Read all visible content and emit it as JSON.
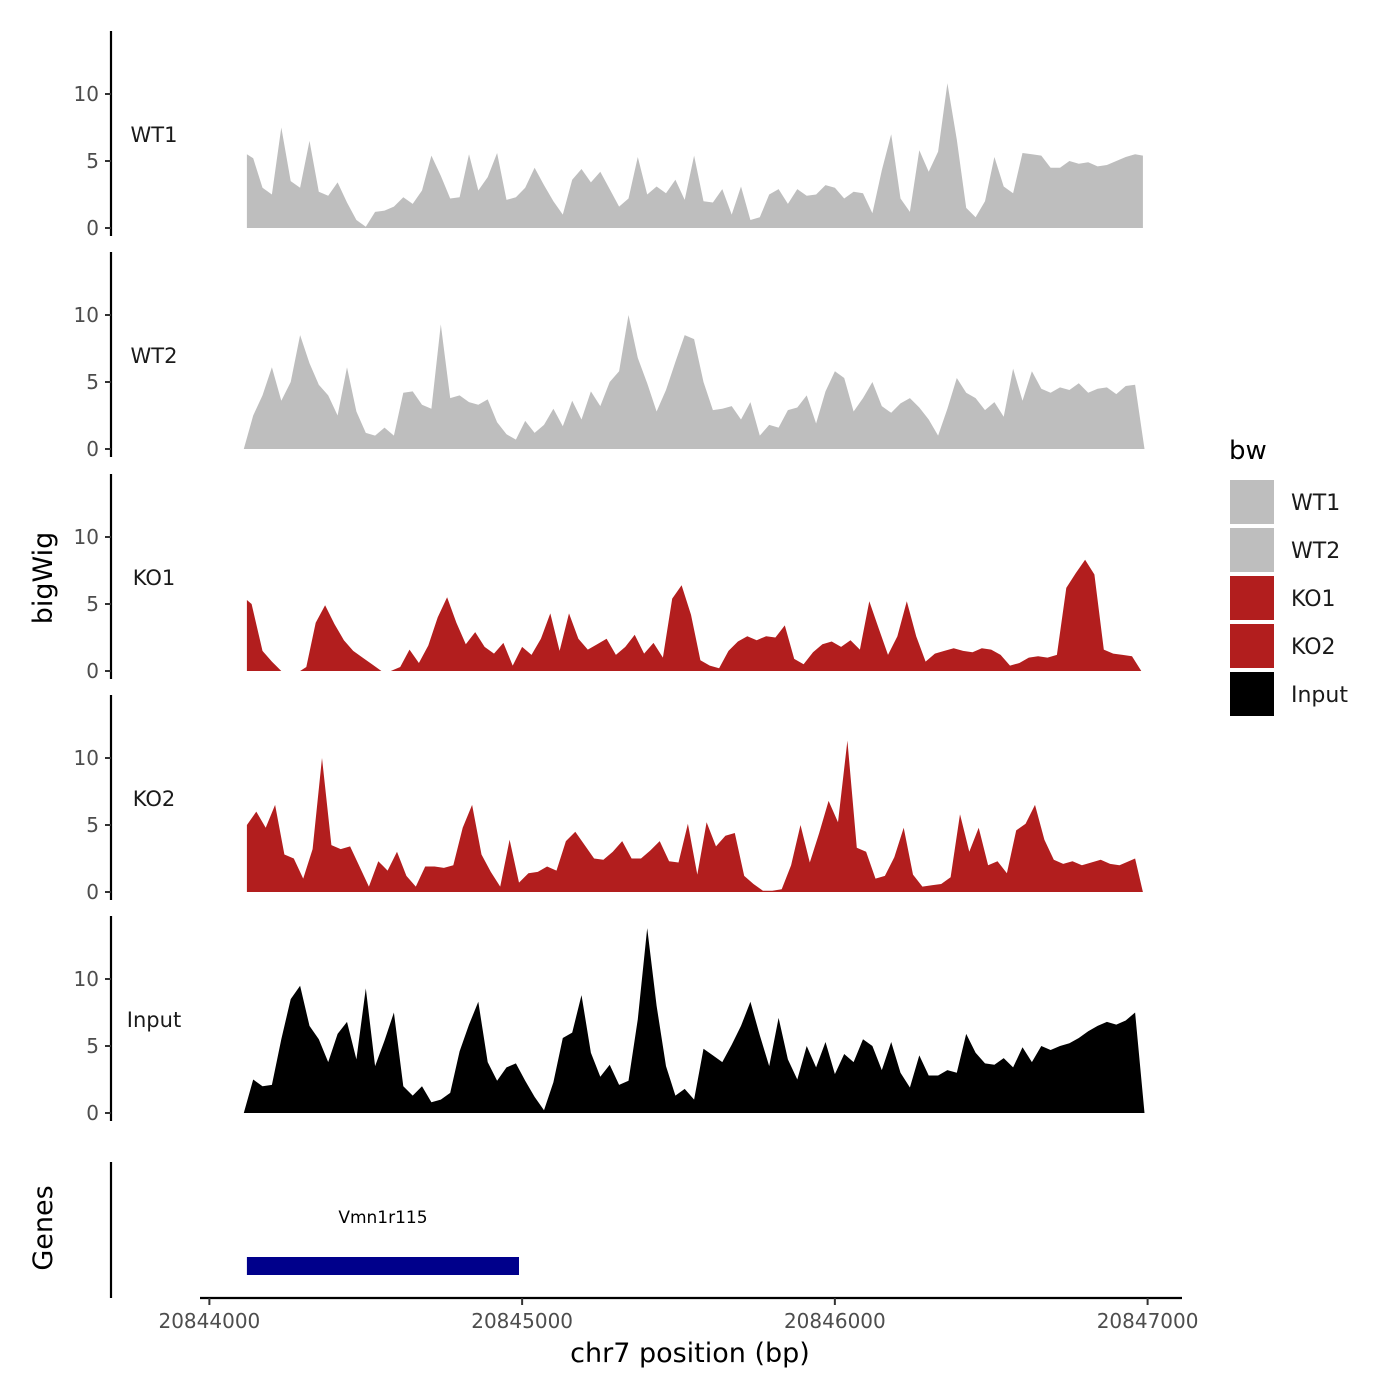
{
  "chart_data": {
    "type": "area",
    "ylabel": "bigWig",
    "xlabel": "chr7 position (bp)",
    "xlim": [
      20843970,
      20847110
    ],
    "ylim": [
      0,
      14.5
    ],
    "x_ticks": [
      20844000,
      20845000,
      20846000,
      20847000
    ],
    "x_tick_labels": [
      "20844000",
      "20845000",
      "20846000",
      "20847000"
    ],
    "y_ticks": [
      0,
      5,
      10
    ],
    "y_tick_labels": [
      "0",
      "5",
      "10"
    ],
    "legend": {
      "title": "bw",
      "position": "right",
      "entries": [
        {
          "name": "WT1",
          "color": "#bebebe"
        },
        {
          "name": "WT2",
          "color": "#bebebe"
        },
        {
          "name": "KO1",
          "color": "#b21e1e"
        },
        {
          "name": "KO2",
          "color": "#b21e1e"
        },
        {
          "name": "Input",
          "color": "#000000"
        }
      ]
    },
    "series": [
      {
        "name": "WT1",
        "color": "#bebebe",
        "x": [
          20844120,
          20844140,
          20844170,
          20844200,
          20844230,
          20844260,
          20844290,
          20844320,
          20844350,
          20844380,
          20844410,
          20844440,
          20844470,
          20844500,
          20844530,
          20844560,
          20844590,
          20844620,
          20844650,
          20844680,
          20844710,
          20844740,
          20844770,
          20844800,
          20844830,
          20844860,
          20844890,
          20844920,
          20844950,
          20844980,
          20845010,
          20845040,
          20845070,
          20845100,
          20845130,
          20845160,
          20845190,
          20845220,
          20845250,
          20845280,
          20845310,
          20845340,
          20845370,
          20845400,
          20845430,
          20845460,
          20845490,
          20845520,
          20845550,
          20845580,
          20845610,
          20845640,
          20845670,
          20845700,
          20845730,
          20845760,
          20845790,
          20845820,
          20845850,
          20845880,
          20845910,
          20845940,
          20845970,
          20846000,
          20846030,
          20846060,
          20846090,
          20846120,
          20846150,
          20846180,
          20846210,
          20846240,
          20846270,
          20846300,
          20846330,
          20846360,
          20846390,
          20846420,
          20846450,
          20846480,
          20846510,
          20846540,
          20846570,
          20846600,
          20846630,
          20846660,
          20846690,
          20846720,
          20846750,
          20846780,
          20846810,
          20846840,
          20846870,
          20846900,
          20846930,
          20846960,
          20846985
        ],
        "values": [
          5.5,
          5.2,
          3.0,
          2.5,
          7.5,
          3.5,
          3.0,
          6.5,
          2.7,
          2.4,
          3.4,
          1.9,
          0.6,
          0.1,
          1.2,
          1.3,
          1.6,
          2.3,
          1.8,
          2.8,
          5.4,
          3.9,
          2.2,
          2.3,
          5.5,
          2.8,
          3.8,
          5.6,
          2.1,
          2.3,
          3.0,
          4.5,
          3.2,
          2.0,
          1.0,
          3.6,
          4.4,
          3.4,
          4.2,
          2.9,
          1.6,
          2.2,
          5.3,
          2.5,
          3.1,
          2.6,
          3.6,
          2.1,
          5.4,
          2.0,
          1.9,
          2.9,
          1.0,
          3.1,
          0.6,
          0.8,
          2.5,
          2.9,
          1.8,
          2.9,
          2.4,
          2.5,
          3.2,
          3.0,
          2.2,
          2.7,
          2.6,
          1.1,
          4.3,
          7.0,
          2.2,
          1.2,
          5.8,
          4.2,
          5.7,
          10.8,
          6.6,
          1.5,
          0.8,
          2.0,
          5.3,
          3.1,
          2.6,
          5.6,
          5.5,
          5.4,
          4.5,
          4.5,
          5.0,
          4.8,
          4.9,
          4.6,
          4.7,
          5.0,
          5.3,
          5.5,
          5.4
        ]
      },
      {
        "name": "WT2",
        "color": "#bebebe",
        "x": [
          20844110,
          20844140,
          20844170,
          20844200,
          20844230,
          20844260,
          20844290,
          20844320,
          20844350,
          20844380,
          20844410,
          20844440,
          20844470,
          20844500,
          20844530,
          20844560,
          20844590,
          20844620,
          20844650,
          20844680,
          20844710,
          20844740,
          20844770,
          20844800,
          20844830,
          20844860,
          20844890,
          20844920,
          20844950,
          20844980,
          20845010,
          20845040,
          20845070,
          20845100,
          20845130,
          20845160,
          20845190,
          20845220,
          20845250,
          20845280,
          20845310,
          20845340,
          20845370,
          20845400,
          20845430,
          20845460,
          20845490,
          20845520,
          20845550,
          20845580,
          20845610,
          20845640,
          20845670,
          20845700,
          20845730,
          20845760,
          20845790,
          20845820,
          20845850,
          20845880,
          20845910,
          20845940,
          20845970,
          20846000,
          20846030,
          20846060,
          20846090,
          20846120,
          20846150,
          20846180,
          20846210,
          20846240,
          20846270,
          20846300,
          20846330,
          20846360,
          20846390,
          20846420,
          20846450,
          20846480,
          20846510,
          20846540,
          20846570,
          20846600,
          20846630,
          20846660,
          20846690,
          20846720,
          20846750,
          20846780,
          20846810,
          20846840,
          20846870,
          20846900,
          20846930,
          20846960,
          20846990
        ],
        "values": [
          0.0,
          2.5,
          4.0,
          6.1,
          3.6,
          5.0,
          8.5,
          6.4,
          4.8,
          4.0,
          2.5,
          6.1,
          2.8,
          1.2,
          1.0,
          1.6,
          1.0,
          4.2,
          4.3,
          3.3,
          3.0,
          9.3,
          3.8,
          4.0,
          3.5,
          3.3,
          3.7,
          2.0,
          1.1,
          0.7,
          2.1,
          1.2,
          1.8,
          3.0,
          1.7,
          3.6,
          2.2,
          4.3,
          3.2,
          5.0,
          5.8,
          10.0,
          6.8,
          4.9,
          2.8,
          4.4,
          6.5,
          8.5,
          8.2,
          5.0,
          2.9,
          3.0,
          3.2,
          2.2,
          3.5,
          1.0,
          1.8,
          1.6,
          2.9,
          3.1,
          4.0,
          1.9,
          4.3,
          5.8,
          5.3,
          2.8,
          3.8,
          5.0,
          3.2,
          2.7,
          3.4,
          3.8,
          3.1,
          2.2,
          1.0,
          3.0,
          5.3,
          4.2,
          3.8,
          2.9,
          3.5,
          2.4,
          6.0,
          3.6,
          5.8,
          4.5,
          4.2,
          4.6,
          4.4,
          4.9,
          4.2,
          4.5,
          4.6,
          4.1,
          4.7,
          4.8,
          0.0
        ]
      },
      {
        "name": "KO1",
        "color": "#b21e1e",
        "x": [
          20844120,
          20844135,
          20844170,
          20844200,
          20844230,
          20844260,
          20844290,
          20844310,
          20844340,
          20844370,
          20844400,
          20844430,
          20844460,
          20844490,
          20844520,
          20844550,
          20844580,
          20844610,
          20844640,
          20844670,
          20844700,
          20844730,
          20844760,
          20844790,
          20844820,
          20844850,
          20844880,
          20844910,
          20844940,
          20844970,
          20845000,
          20845030,
          20845060,
          20845090,
          20845120,
          20845150,
          20845180,
          20845210,
          20845240,
          20845270,
          20845300,
          20845330,
          20845360,
          20845390,
          20845420,
          20845450,
          20845480,
          20845510,
          20845540,
          20845570,
          20845600,
          20845630,
          20845660,
          20845690,
          20845720,
          20845750,
          20845780,
          20845810,
          20845840,
          20845870,
          20845900,
          20845930,
          20845960,
          20845990,
          20846020,
          20846050,
          20846080,
          20846110,
          20846140,
          20846170,
          20846200,
          20846230,
          20846260,
          20846290,
          20846320,
          20846350,
          20846380,
          20846410,
          20846440,
          20846470,
          20846500,
          20846530,
          20846560,
          20846590,
          20846620,
          20846650,
          20846680,
          20846710,
          20846740,
          20846770,
          20846800,
          20846830,
          20846860,
          20846890,
          20846920,
          20846950,
          20846980
        ],
        "values": [
          5.3,
          5.0,
          1.5,
          0.7,
          0.0,
          0.0,
          0.0,
          0.3,
          3.6,
          4.9,
          3.5,
          2.3,
          1.5,
          1.0,
          0.5,
          0.0,
          0.0,
          0.3,
          1.6,
          0.6,
          1.9,
          4.0,
          5.5,
          3.6,
          2.0,
          2.9,
          1.8,
          1.3,
          2.1,
          0.4,
          1.8,
          1.2,
          2.4,
          4.3,
          1.5,
          4.3,
          2.4,
          1.6,
          2.0,
          2.4,
          1.2,
          1.8,
          2.7,
          1.3,
          2.1,
          1.0,
          5.4,
          6.4,
          4.2,
          0.8,
          0.4,
          0.2,
          1.5,
          2.2,
          2.6,
          2.3,
          2.6,
          2.5,
          3.4,
          0.9,
          0.5,
          1.4,
          2.0,
          2.2,
          1.8,
          2.3,
          1.6,
          5.2,
          3.2,
          1.2,
          2.6,
          5.2,
          2.6,
          0.7,
          1.3,
          1.5,
          1.7,
          1.5,
          1.4,
          1.7,
          1.6,
          1.2,
          0.4,
          0.6,
          1.0,
          1.1,
          1.0,
          1.2,
          6.2,
          7.3,
          8.3,
          7.2,
          1.6,
          1.3,
          1.2,
          1.1,
          0.0
        ]
      },
      {
        "name": "KO2",
        "color": "#b21e1e",
        "x": [
          20844120,
          20844150,
          20844180,
          20844210,
          20844240,
          20844270,
          20844300,
          20844330,
          20844360,
          20844390,
          20844420,
          20844450,
          20844480,
          20844510,
          20844540,
          20844570,
          20844600,
          20844630,
          20844660,
          20844690,
          20844720,
          20844750,
          20844780,
          20844810,
          20844840,
          20844870,
          20844900,
          20844930,
          20844960,
          20844990,
          20845020,
          20845050,
          20845080,
          20845110,
          20845140,
          20845170,
          20845200,
          20845230,
          20845260,
          20845290,
          20845320,
          20845350,
          20845380,
          20845410,
          20845440,
          20845470,
          20845500,
          20845530,
          20845560,
          20845590,
          20845620,
          20845650,
          20845680,
          20845710,
          20845740,
          20845770,
          20845800,
          20845830,
          20845860,
          20845890,
          20845920,
          20845950,
          20845980,
          20846010,
          20846040,
          20846070,
          20846100,
          20846130,
          20846160,
          20846190,
          20846220,
          20846250,
          20846280,
          20846310,
          20846340,
          20846370,
          20846400,
          20846430,
          20846460,
          20846490,
          20846520,
          20846550,
          20846580,
          20846610,
          20846640,
          20846670,
          20846700,
          20846730,
          20846760,
          20846790,
          20846820,
          20846850,
          20846880,
          20846910,
          20846940,
          20846960,
          20846985
        ],
        "values": [
          5.0,
          6.0,
          4.8,
          6.5,
          2.8,
          2.5,
          1.0,
          3.2,
          10.0,
          3.5,
          3.2,
          3.4,
          1.9,
          0.4,
          2.3,
          1.6,
          3.0,
          1.2,
          0.4,
          1.9,
          1.9,
          1.8,
          2.0,
          4.8,
          6.5,
          2.8,
          1.5,
          0.4,
          3.9,
          0.7,
          1.4,
          1.5,
          1.9,
          1.6,
          3.8,
          4.5,
          3.5,
          2.5,
          2.4,
          3.0,
          3.8,
          2.5,
          2.5,
          3.1,
          3.8,
          2.3,
          2.2,
          5.1,
          1.3,
          5.2,
          3.4,
          4.2,
          4.4,
          1.2,
          0.6,
          0.1,
          0.1,
          0.2,
          2.0,
          5.0,
          2.2,
          4.4,
          6.8,
          5.2,
          11.3,
          3.3,
          3.0,
          1.0,
          1.2,
          2.6,
          4.8,
          1.3,
          0.4,
          0.5,
          0.6,
          1.1,
          5.8,
          3.0,
          4.8,
          2.0,
          2.3,
          1.4,
          4.6,
          5.1,
          6.5,
          3.9,
          2.4,
          2.1,
          2.3,
          2.0,
          2.2,
          2.4,
          2.1,
          2.0,
          2.3,
          2.5,
          0.0
        ]
      },
      {
        "name": "Input",
        "color": "#000000",
        "x": [
          20844110,
          20844140,
          20844170,
          20844200,
          20844230,
          20844260,
          20844290,
          20844320,
          20844350,
          20844380,
          20844410,
          20844440,
          20844470,
          20844500,
          20844530,
          20844560,
          20844590,
          20844620,
          20844650,
          20844680,
          20844710,
          20844740,
          20844770,
          20844800,
          20844830,
          20844860,
          20844890,
          20844920,
          20844950,
          20844980,
          20845010,
          20845040,
          20845070,
          20845100,
          20845130,
          20845160,
          20845190,
          20845220,
          20845250,
          20845280,
          20845310,
          20845340,
          20845370,
          20845400,
          20845430,
          20845460,
          20845490,
          20845520,
          20845550,
          20845580,
          20845610,
          20845640,
          20845670,
          20845700,
          20845730,
          20845760,
          20845790,
          20845820,
          20845850,
          20845880,
          20845910,
          20845940,
          20845970,
          20846000,
          20846030,
          20846060,
          20846090,
          20846120,
          20846150,
          20846180,
          20846210,
          20846240,
          20846270,
          20846300,
          20846330,
          20846360,
          20846390,
          20846420,
          20846450,
          20846480,
          20846510,
          20846540,
          20846570,
          20846600,
          20846630,
          20846660,
          20846690,
          20846720,
          20846750,
          20846780,
          20846810,
          20846840,
          20846870,
          20846900,
          20846930,
          20846960,
          20846990
        ],
        "values": [
          0.0,
          2.5,
          2.0,
          2.1,
          5.5,
          8.5,
          9.5,
          6.5,
          5.5,
          3.8,
          5.9,
          6.8,
          4.0,
          9.3,
          3.5,
          5.4,
          7.5,
          2.0,
          1.3,
          2.0,
          0.8,
          1.0,
          1.5,
          4.6,
          6.6,
          8.3,
          3.8,
          2.4,
          3.4,
          3.7,
          2.4,
          1.2,
          0.2,
          2.3,
          5.6,
          6.0,
          8.8,
          4.5,
          2.7,
          3.6,
          2.1,
          2.4,
          7.0,
          13.8,
          8.0,
          3.5,
          1.3,
          1.8,
          1.0,
          4.8,
          4.3,
          3.8,
          5.1,
          6.5,
          8.3,
          5.8,
          3.5,
          7.1,
          4.0,
          2.5,
          5.0,
          3.4,
          5.3,
          2.9,
          4.4,
          3.8,
          5.5,
          5.0,
          3.2,
          5.3,
          3.0,
          1.9,
          4.3,
          2.8,
          2.8,
          3.2,
          3.0,
          5.9,
          4.5,
          3.7,
          3.6,
          4.1,
          3.4,
          4.9,
          3.8,
          5.0,
          4.7,
          5.0,
          5.2,
          5.6,
          6.1,
          6.5,
          6.8,
          6.6,
          6.9,
          7.5,
          0.0
        ]
      }
    ],
    "genes_track": {
      "ylabel": "Genes",
      "genes": [
        {
          "name": "Vmn1r115",
          "start": 20844120,
          "end": 20844990,
          "color": "#00008b"
        }
      ]
    }
  }
}
